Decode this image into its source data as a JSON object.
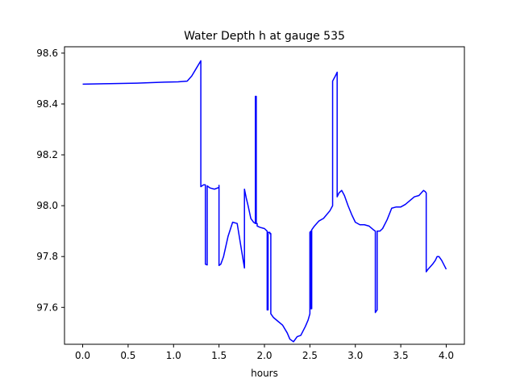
{
  "chart_data": {
    "type": "line",
    "title": "Water Depth h at gauge 535",
    "xlabel": "hours",
    "ylabel": "",
    "xlim": [
      -0.2,
      4.2
    ],
    "ylim": [
      97.455,
      98.625
    ],
    "x_ticks": [
      0.0,
      0.5,
      1.0,
      1.5,
      2.0,
      2.5,
      3.0,
      3.5,
      4.0
    ],
    "x_tick_labels": [
      "0.0",
      "0.5",
      "1.0",
      "1.5",
      "2.0",
      "2.5",
      "3.0",
      "3.5",
      "4.0"
    ],
    "y_ticks": [
      97.6,
      97.8,
      98.0,
      98.2,
      98.4,
      98.6
    ],
    "y_tick_labels": [
      "97.6",
      "97.8",
      "98.0",
      "98.2",
      "98.4",
      "98.6"
    ],
    "grid": false,
    "line_color": "#0000ff",
    "series": [
      {
        "x": [
          0.0,
          0.3,
          0.6,
          0.9,
          1.05,
          1.15,
          1.2,
          1.25,
          1.3,
          1.3,
          1.33,
          1.35,
          1.35,
          1.37,
          1.37,
          1.4,
          1.45,
          1.5,
          1.5,
          1.5,
          1.52,
          1.55,
          1.6,
          1.65,
          1.7,
          1.75,
          1.78,
          1.78,
          1.8,
          1.82,
          1.85,
          1.88,
          1.9,
          1.9,
          1.91,
          1.91,
          1.92,
          1.92,
          1.95,
          2.0,
          2.03,
          2.03,
          2.04,
          2.04,
          2.06,
          2.06,
          2.07,
          2.07,
          2.1,
          2.15,
          2.2,
          2.25,
          2.28,
          2.32,
          2.36,
          2.4,
          2.45,
          2.48,
          2.5,
          2.5,
          2.51,
          2.51,
          2.52,
          2.52,
          2.55,
          2.6,
          2.65,
          2.72,
          2.75,
          2.75,
          2.78,
          2.8,
          2.8,
          2.82,
          2.85,
          2.88,
          2.92,
          2.96,
          3.0,
          3.05,
          3.1,
          3.15,
          3.2,
          3.22,
          3.22,
          3.23,
          3.24,
          3.24,
          3.27,
          3.3,
          3.35,
          3.4,
          3.45,
          3.5,
          3.55,
          3.6,
          3.65,
          3.7,
          3.75,
          3.77,
          3.78,
          3.78,
          3.8,
          3.85,
          3.88,
          3.9,
          3.92,
          3.95,
          4.0
        ],
        "y": [
          98.478,
          98.48,
          98.482,
          98.486,
          98.487,
          98.49,
          98.51,
          98.54,
          98.57,
          98.075,
          98.082,
          98.082,
          97.77,
          97.767,
          98.078,
          98.07,
          98.065,
          98.072,
          98.08,
          97.765,
          97.77,
          97.8,
          97.88,
          97.935,
          97.93,
          97.82,
          97.755,
          98.065,
          98.03,
          98.0,
          97.95,
          97.935,
          97.93,
          98.43,
          98.43,
          97.93,
          97.93,
          97.92,
          97.915,
          97.91,
          97.9,
          97.59,
          97.59,
          97.895,
          97.895,
          97.89,
          97.89,
          97.575,
          97.56,
          97.545,
          97.53,
          97.5,
          97.475,
          97.465,
          97.485,
          97.49,
          97.525,
          97.55,
          97.575,
          97.895,
          97.9,
          97.595,
          97.595,
          97.905,
          97.92,
          97.94,
          97.95,
          97.98,
          98.0,
          98.49,
          98.51,
          98.525,
          98.035,
          98.05,
          98.06,
          98.04,
          98.0,
          97.965,
          97.935,
          97.925,
          97.925,
          97.92,
          97.905,
          97.9,
          97.58,
          97.585,
          97.59,
          97.9,
          97.9,
          97.91,
          97.945,
          97.99,
          97.995,
          97.995,
          98.005,
          98.02,
          98.035,
          98.04,
          98.06,
          98.055,
          98.05,
          97.74,
          97.75,
          97.77,
          97.785,
          97.8,
          97.8,
          97.785,
          97.75
        ]
      }
    ]
  }
}
